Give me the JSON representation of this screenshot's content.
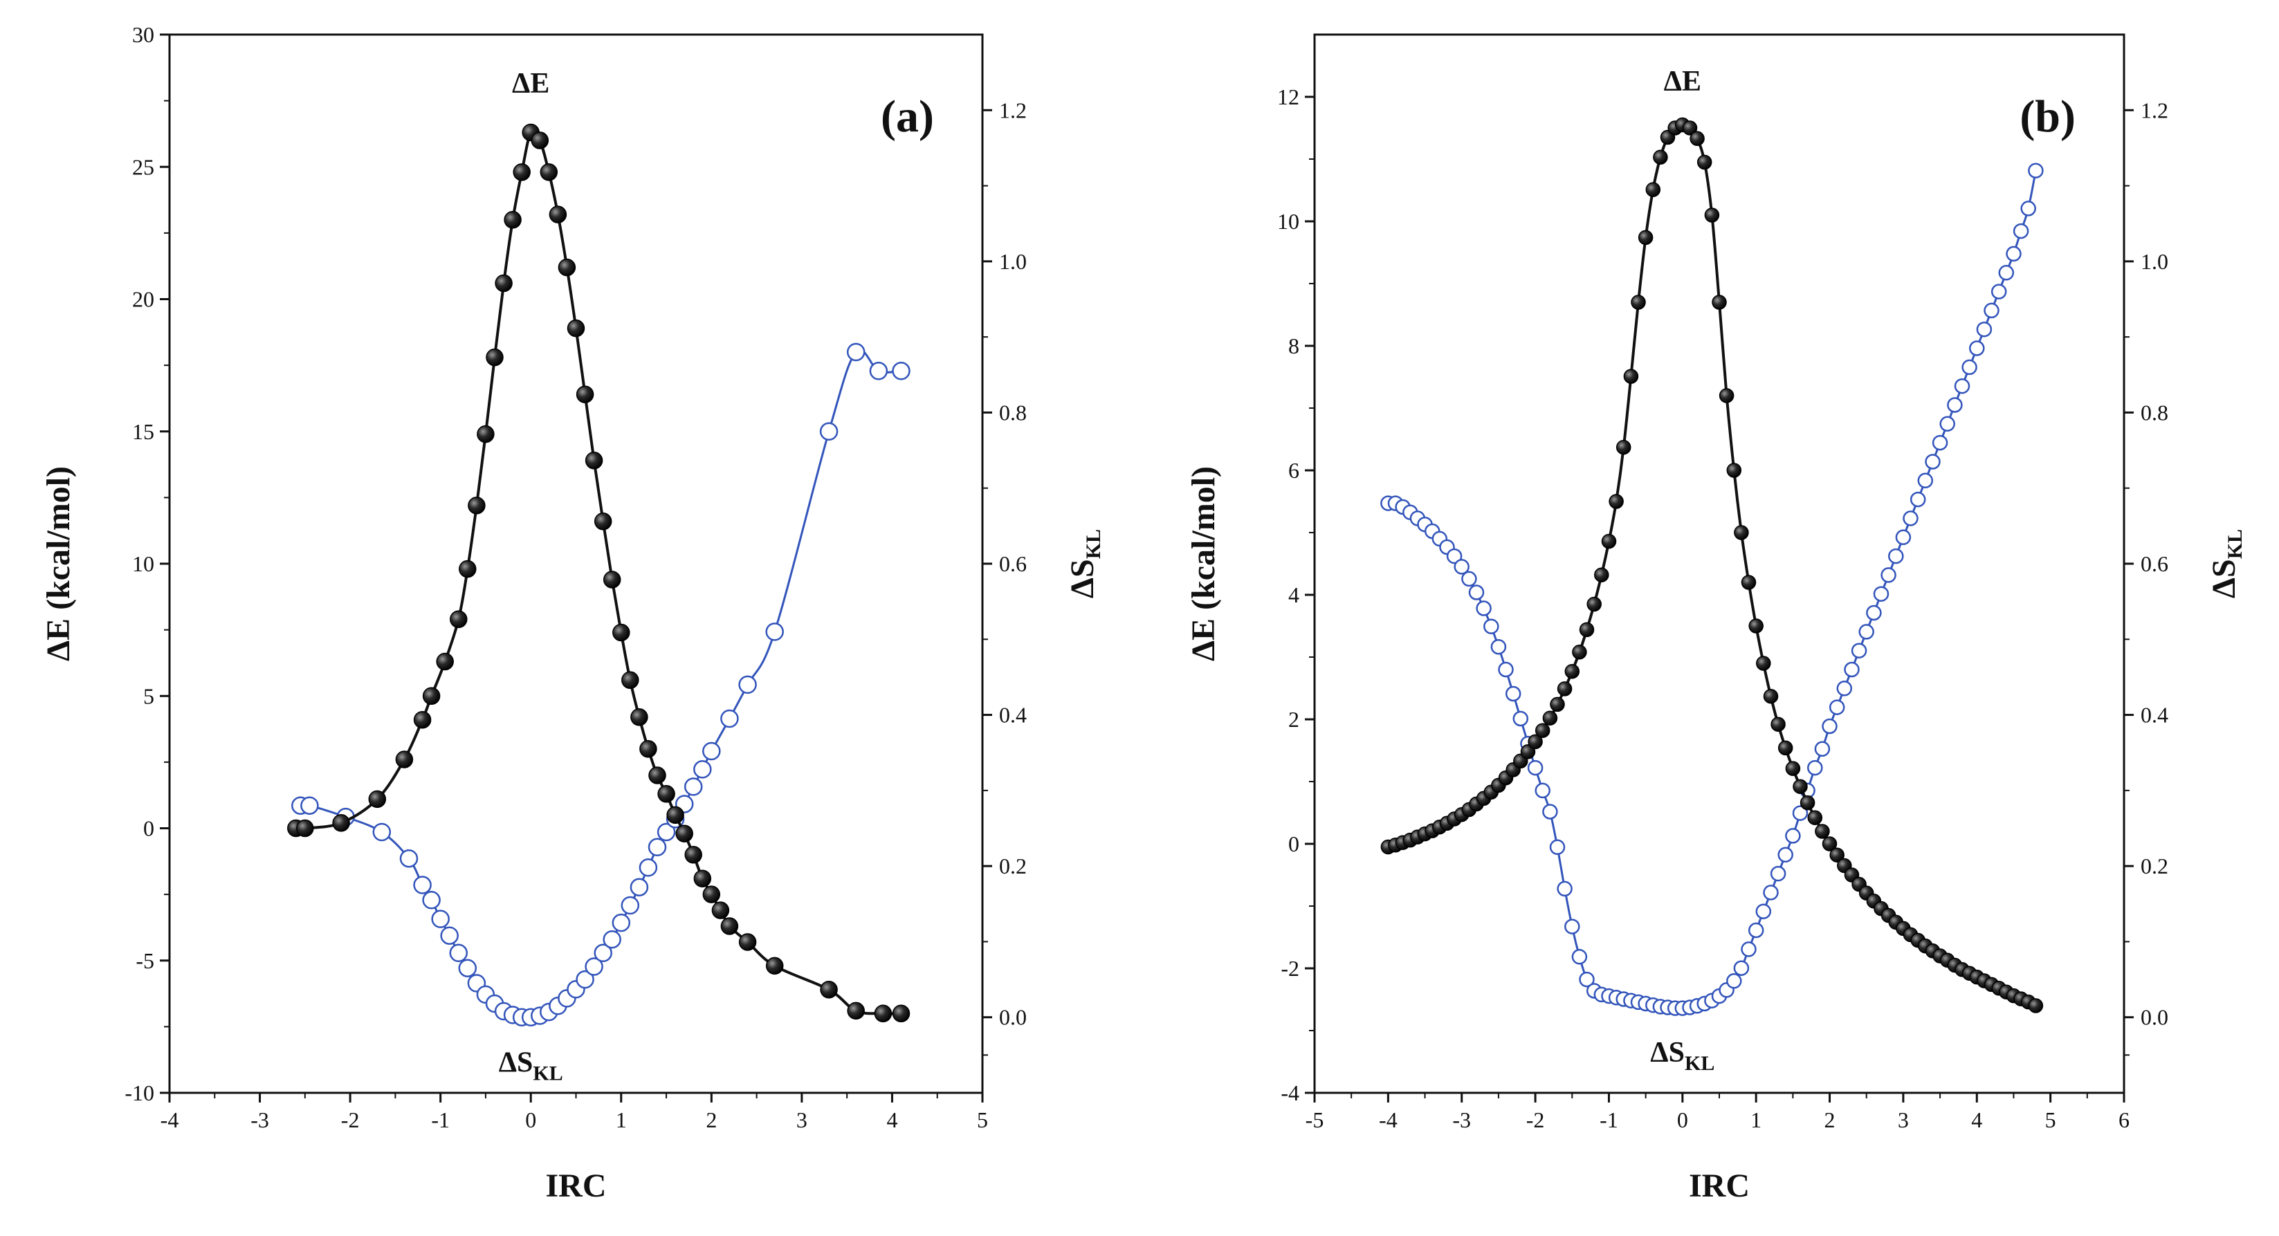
{
  "chart_data": [
    {
      "type": "line",
      "panel_label": "(a)",
      "xlabel": "IRC",
      "ylabel_left": "ΔE (kcal/mol)",
      "ylabel_right_main": "ΔS",
      "ylabel_right_sub": "KL",
      "xlim": [
        -4,
        5
      ],
      "ylim_left": [
        -10,
        30
      ],
      "ylim_right": [
        -0.1,
        1.3
      ],
      "xticks": [
        -4,
        -3,
        -2,
        -1,
        0,
        1,
        2,
        3,
        4,
        5
      ],
      "xtick_labels": [
        "-4",
        "-3",
        "-2",
        "-1",
        "0",
        "1",
        "2",
        "3",
        "4",
        "5"
      ],
      "yticks_left": [
        -10,
        -5,
        0,
        5,
        10,
        15,
        20,
        25,
        30
      ],
      "ytick_labels_left": [
        "-10",
        "-5",
        "0",
        "5",
        "10",
        "15",
        "20",
        "25",
        "30"
      ],
      "yticks_right": [
        0.0,
        0.2,
        0.4,
        0.6,
        0.8,
        1.0,
        1.2
      ],
      "ytick_labels_right": [
        "0.0",
        "0.2",
        "0.4",
        "0.6",
        "0.8",
        "1.0",
        "1.2"
      ],
      "annotations": [
        {
          "text": "ΔE",
          "sub": "",
          "x": 0.0,
          "y": 27.8,
          "axis": "left"
        },
        {
          "text": "ΔS",
          "sub": "KL",
          "x": 0.0,
          "y": -9.2,
          "axis": "left"
        }
      ],
      "series": [
        {
          "name": "ΔE",
          "axis": "left",
          "marker": "filled",
          "color": "#111111",
          "x": [
            -2.6,
            -2.5,
            -2.1,
            -1.7,
            -1.4,
            -1.2,
            -1.1,
            -0.95,
            -0.8,
            -0.7,
            -0.6,
            -0.5,
            -0.4,
            -0.3,
            -0.2,
            -0.1,
            0.0,
            0.1,
            0.2,
            0.3,
            0.4,
            0.5,
            0.6,
            0.7,
            0.8,
            0.9,
            1.0,
            1.1,
            1.2,
            1.3,
            1.4,
            1.5,
            1.6,
            1.7,
            1.8,
            1.9,
            2.0,
            2.1,
            2.2,
            2.4,
            2.7,
            3.3,
            3.6,
            3.9,
            4.1
          ],
          "y": [
            0.0,
            0.0,
            0.2,
            1.1,
            2.6,
            4.1,
            5.0,
            6.3,
            7.9,
            9.8,
            12.2,
            14.9,
            17.8,
            20.6,
            23.0,
            24.8,
            26.3,
            26.0,
            24.8,
            23.2,
            21.2,
            18.9,
            16.4,
            13.9,
            11.6,
            9.4,
            7.4,
            5.6,
            4.2,
            3.0,
            2.0,
            1.3,
            0.5,
            -0.2,
            -1.0,
            -1.9,
            -2.5,
            -3.1,
            -3.7,
            -4.3,
            -5.2,
            -6.1,
            -6.9,
            -7.0,
            -7.0
          ]
        },
        {
          "name": "ΔSKL",
          "axis": "right",
          "marker": "open",
          "color": "#3355bb",
          "x": [
            -2.55,
            -2.45,
            -2.05,
            -1.65,
            -1.35,
            -1.2,
            -1.1,
            -1.0,
            -0.9,
            -0.8,
            -0.7,
            -0.6,
            -0.5,
            -0.4,
            -0.3,
            -0.2,
            -0.1,
            0.0,
            0.1,
            0.2,
            0.3,
            0.4,
            0.5,
            0.6,
            0.7,
            0.8,
            0.9,
            1.0,
            1.1,
            1.2,
            1.3,
            1.4,
            1.5,
            1.6,
            1.7,
            1.8,
            1.9,
            2.0,
            2.2,
            2.4,
            2.7,
            3.3,
            3.6,
            3.85,
            4.1
          ],
          "y": [
            0.28,
            0.28,
            0.265,
            0.245,
            0.21,
            0.175,
            0.155,
            0.13,
            0.108,
            0.085,
            0.065,
            0.045,
            0.03,
            0.018,
            0.008,
            0.003,
            0.0,
            0.0,
            0.002,
            0.007,
            0.015,
            0.025,
            0.037,
            0.05,
            0.067,
            0.085,
            0.103,
            0.125,
            0.148,
            0.172,
            0.198,
            0.225,
            0.245,
            0.262,
            0.282,
            0.305,
            0.328,
            0.352,
            0.395,
            0.44,
            0.51,
            0.775,
            0.88,
            0.855,
            0.855
          ]
        }
      ]
    },
    {
      "type": "line",
      "panel_label": "(b)",
      "xlabel": "IRC",
      "ylabel_left": "ΔE (kcal/mol)",
      "ylabel_right_main": "ΔS",
      "ylabel_right_sub": "KL",
      "xlim": [
        -5,
        6
      ],
      "ylim_left": [
        -4,
        13
      ],
      "ylim_right": [
        -0.1,
        1.3
      ],
      "xticks": [
        -5,
        -4,
        -3,
        -2,
        -1,
        0,
        1,
        2,
        3,
        4,
        5,
        6
      ],
      "xtick_labels": [
        "-5",
        "-4",
        "-3",
        "-2",
        "-1",
        "0",
        "1",
        "2",
        "3",
        "4",
        "5",
        "6"
      ],
      "yticks_left": [
        -4,
        -2,
        0,
        2,
        4,
        6,
        8,
        10,
        12
      ],
      "ytick_labels_left": [
        "-4",
        "-2",
        "0",
        "2",
        "4",
        "6",
        "8",
        "10",
        "12"
      ],
      "yticks_right": [
        0.0,
        0.2,
        0.4,
        0.6,
        0.8,
        1.0,
        1.2
      ],
      "ytick_labels_right": [
        "0.0",
        "0.2",
        "0.4",
        "0.6",
        "0.8",
        "1.0",
        "1.2"
      ],
      "annotations": [
        {
          "text": "ΔE",
          "sub": "",
          "x": 0.0,
          "y": 12.1,
          "axis": "left"
        },
        {
          "text": "ΔS",
          "sub": "KL",
          "x": 0.0,
          "y": -3.5,
          "axis": "left"
        }
      ],
      "series": [
        {
          "name": "ΔE",
          "axis": "left",
          "marker": "filled",
          "color": "#111111",
          "x": [
            -4.0,
            -3.9,
            -3.8,
            -3.7,
            -3.6,
            -3.5,
            -3.4,
            -3.3,
            -3.2,
            -3.1,
            -3.0,
            -2.9,
            -2.8,
            -2.7,
            -2.6,
            -2.5,
            -2.4,
            -2.3,
            -2.2,
            -2.1,
            -2.0,
            -1.9,
            -1.8,
            -1.7,
            -1.6,
            -1.5,
            -1.4,
            -1.3,
            -1.2,
            -1.1,
            -1.0,
            -0.9,
            -0.8,
            -0.7,
            -0.6,
            -0.5,
            -0.4,
            -0.3,
            -0.2,
            -0.1,
            0.0,
            0.1,
            0.2,
            0.3,
            0.4,
            0.5,
            0.6,
            0.7,
            0.8,
            0.9,
            1.0,
            1.1,
            1.2,
            1.3,
            1.4,
            1.5,
            1.6,
            1.7,
            1.8,
            1.9,
            2.0,
            2.1,
            2.2,
            2.3,
            2.4,
            2.5,
            2.6,
            2.7,
            2.8,
            2.9,
            3.0,
            3.1,
            3.2,
            3.3,
            3.4,
            3.5,
            3.6,
            3.7,
            3.8,
            3.9,
            4.0,
            4.1,
            4.2,
            4.3,
            4.4,
            4.5,
            4.6,
            4.7,
            4.8
          ],
          "y": [
            -0.05,
            -0.02,
            0.02,
            0.06,
            0.11,
            0.16,
            0.21,
            0.27,
            0.33,
            0.4,
            0.47,
            0.55,
            0.64,
            0.73,
            0.83,
            0.94,
            1.06,
            1.19,
            1.33,
            1.48,
            1.64,
            1.82,
            2.02,
            2.24,
            2.49,
            2.77,
            3.08,
            3.44,
            3.85,
            4.32,
            4.86,
            5.5,
            6.37,
            7.51,
            8.7,
            9.74,
            10.51,
            11.03,
            11.35,
            11.5,
            11.55,
            11.5,
            11.33,
            10.95,
            10.1,
            8.7,
            7.2,
            6.0,
            5.0,
            4.2,
            3.5,
            2.9,
            2.37,
            1.92,
            1.54,
            1.21,
            0.92,
            0.66,
            0.42,
            0.2,
            0.0,
            -0.18,
            -0.35,
            -0.5,
            -0.65,
            -0.79,
            -0.92,
            -1.04,
            -1.15,
            -1.26,
            -1.36,
            -1.46,
            -1.55,
            -1.64,
            -1.72,
            -1.8,
            -1.87,
            -1.95,
            -2.02,
            -2.08,
            -2.14,
            -2.2,
            -2.26,
            -2.32,
            -2.38,
            -2.44,
            -2.49,
            -2.54,
            -2.6
          ]
        },
        {
          "name": "ΔSKL",
          "axis": "right",
          "marker": "open",
          "color": "#3355bb",
          "x": [
            -4.0,
            -3.9,
            -3.8,
            -3.7,
            -3.6,
            -3.5,
            -3.4,
            -3.3,
            -3.2,
            -3.1,
            -3.0,
            -2.9,
            -2.8,
            -2.7,
            -2.6,
            -2.5,
            -2.4,
            -2.3,
            -2.2,
            -2.1,
            -2.0,
            -1.9,
            -1.8,
            -1.7,
            -1.6,
            -1.5,
            -1.4,
            -1.3,
            -1.2,
            -1.1,
            -1.0,
            -0.9,
            -0.8,
            -0.7,
            -0.6,
            -0.5,
            -0.4,
            -0.3,
            -0.2,
            -0.1,
            0.0,
            0.1,
            0.2,
            0.3,
            0.4,
            0.5,
            0.6,
            0.7,
            0.8,
            0.9,
            1.0,
            1.1,
            1.2,
            1.3,
            1.4,
            1.5,
            1.6,
            1.7,
            1.8,
            1.9,
            2.0,
            2.1,
            2.2,
            2.3,
            2.4,
            2.5,
            2.6,
            2.7,
            2.8,
            2.9,
            3.0,
            3.1,
            3.2,
            3.3,
            3.4,
            3.5,
            3.6,
            3.7,
            3.8,
            3.9,
            4.0,
            4.1,
            4.2,
            4.3,
            4.4,
            4.5,
            4.6,
            4.7,
            4.8
          ],
          "y": [
            0.68,
            0.68,
            0.675,
            0.668,
            0.66,
            0.652,
            0.643,
            0.633,
            0.622,
            0.61,
            0.596,
            0.58,
            0.562,
            0.541,
            0.517,
            0.49,
            0.46,
            0.428,
            0.395,
            0.362,
            0.33,
            0.3,
            0.272,
            0.225,
            0.17,
            0.12,
            0.08,
            0.05,
            0.035,
            0.03,
            0.028,
            0.026,
            0.024,
            0.022,
            0.02,
            0.018,
            0.016,
            0.014,
            0.013,
            0.012,
            0.012,
            0.013,
            0.015,
            0.018,
            0.022,
            0.028,
            0.036,
            0.048,
            0.065,
            0.09,
            0.115,
            0.14,
            0.165,
            0.19,
            0.215,
            0.24,
            0.27,
            0.3,
            0.33,
            0.355,
            0.385,
            0.41,
            0.435,
            0.46,
            0.485,
            0.51,
            0.535,
            0.56,
            0.585,
            0.61,
            0.635,
            0.66,
            0.685,
            0.71,
            0.735,
            0.76,
            0.785,
            0.81,
            0.835,
            0.86,
            0.885,
            0.91,
            0.935,
            0.96,
            0.985,
            1.01,
            1.04,
            1.07,
            1.12
          ]
        }
      ]
    }
  ]
}
